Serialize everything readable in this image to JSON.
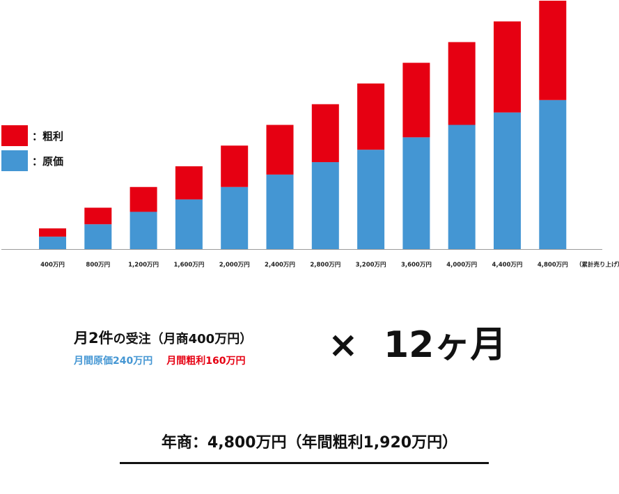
{
  "chart_data": {
    "type": "bar",
    "stacked": true,
    "categories": [
      "400万円",
      "800万円",
      "1,200万円",
      "1,600万円",
      "2,000万円",
      "2,400万円",
      "2,800万円",
      "3,200万円",
      "3,600万円",
      "4,000万円",
      "4,400万円",
      "4,800万円"
    ],
    "x_suffix_label": "（累計売り上げ）",
    "series": [
      {
        "name": "：原価",
        "color": "#4496d3",
        "values": [
          240,
          480,
          720,
          960,
          1200,
          1440,
          1680,
          1920,
          2160,
          2400,
          2640,
          2880
        ]
      },
      {
        "name": "：粗利",
        "color": "#e60012",
        "values": [
          160,
          320,
          480,
          640,
          800,
          960,
          1120,
          1280,
          1440,
          1600,
          1760,
          1920
        ]
      }
    ],
    "ylim": [
      0,
      4800
    ],
    "grid": false,
    "legend": "left"
  },
  "legend": {
    "items": [
      {
        "label": "：粗利",
        "color": "#e60012"
      },
      {
        "label": "：原価",
        "color": "#4496d3"
      }
    ]
  },
  "formula": {
    "main_a": "月2件",
    "main_b": "の受注（月商400万円）",
    "sub_cost": "月間原価240万円",
    "sub_profit": "月間粗利160万円",
    "multiply": "×",
    "duration": "12ヶ月",
    "cost_color": "#4496d3",
    "profit_color": "#e60012"
  },
  "annual": {
    "text": "年商：4,800万円（年間粗利1,920万円）"
  }
}
